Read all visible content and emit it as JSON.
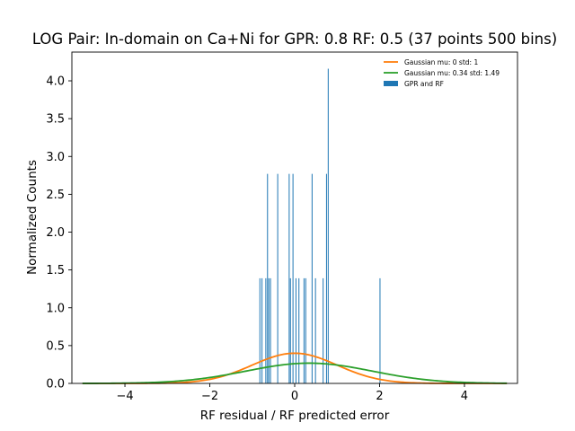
{
  "chart_data": {
    "type": "bar",
    "title": "LOG Pair: In-domain on Ca+Ni for GPR: 0.8 RF: 0.5 (37 points 500 bins)",
    "xlabel": "RF residual / RF predicted error",
    "ylabel": "Normalized Counts",
    "xlim": [
      -5.25,
      5.25
    ],
    "ylim": [
      0,
      4.38
    ],
    "xticks": [
      -4,
      -2,
      0,
      2,
      4
    ],
    "xtick_labels": [
      "−4",
      "−2",
      "0",
      "2",
      "4"
    ],
    "yticks": [
      0.0,
      0.5,
      1.0,
      1.5,
      2.0,
      2.5,
      3.0,
      3.5,
      4.0
    ],
    "ytick_labels": [
      "0.0",
      "0.5",
      "1.0",
      "1.5",
      "2.0",
      "2.5",
      "3.0",
      "3.5",
      "4.0"
    ],
    "grid": false,
    "legend_position": "top-right",
    "histogram": {
      "name": "GPR and RF",
      "color": "#1f77b4",
      "bars": [
        {
          "x": -0.82,
          "y": 1.39
        },
        {
          "x": -0.77,
          "y": 1.39
        },
        {
          "x": -0.68,
          "y": 1.39
        },
        {
          "x": -0.64,
          "y": 2.77
        },
        {
          "x": -0.61,
          "y": 1.39
        },
        {
          "x": -0.57,
          "y": 1.39
        },
        {
          "x": -0.4,
          "y": 2.77
        },
        {
          "x": -0.13,
          "y": 2.77
        },
        {
          "x": -0.1,
          "y": 1.39
        },
        {
          "x": -0.04,
          "y": 2.77
        },
        {
          "x": 0.03,
          "y": 1.39
        },
        {
          "x": 0.1,
          "y": 1.39
        },
        {
          "x": 0.22,
          "y": 1.39
        },
        {
          "x": 0.26,
          "y": 1.39
        },
        {
          "x": 0.41,
          "y": 2.77
        },
        {
          "x": 0.49,
          "y": 1.39
        },
        {
          "x": 0.67,
          "y": 1.39
        },
        {
          "x": 0.75,
          "y": 2.77
        },
        {
          "x": 0.79,
          "y": 4.16
        },
        {
          "x": 2.01,
          "y": 1.39
        }
      ]
    },
    "series": [
      {
        "name": "Gaussian mu: 0 std: 1",
        "color": "#ff7f0e",
        "mu": 0,
        "std": 1,
        "x_range": [
          -5,
          5
        ]
      },
      {
        "name": "Gaussian mu: 0.34 std: 1.49",
        "color": "#2ca02c",
        "mu": 0.34,
        "std": 1.49,
        "x_range": [
          -5,
          5
        ]
      }
    ]
  }
}
